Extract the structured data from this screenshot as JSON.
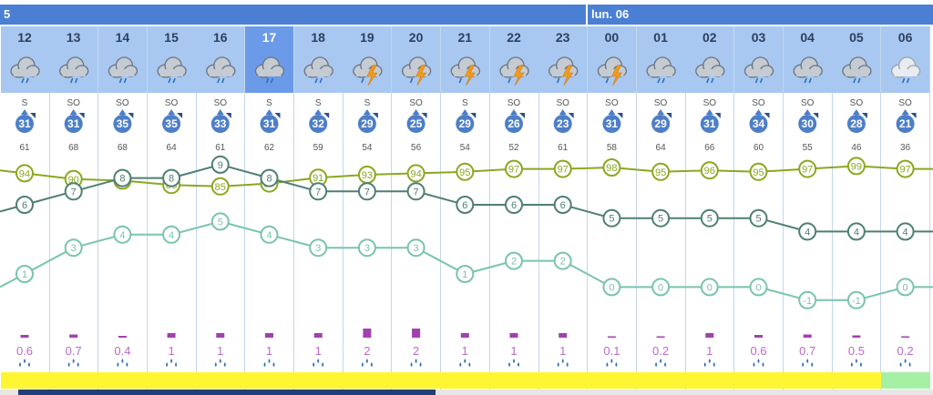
{
  "header": {
    "day_left": "5",
    "day_right": "lun. 06"
  },
  "colors": {
    "day_bar": "#4a7fd4",
    "hour_band": "#a8c8f2",
    "hour_band_current": "#6b9be8",
    "wind_circle": "#4d7fc8",
    "humidity_line": "#8aa820",
    "temp_line": "#4e7f74",
    "dewpoint_line": "#79c4ad",
    "precip_bar": "#a33fb0",
    "precip_text": "#b96bc7",
    "bottom_yellow": "#fff633",
    "bottom_green": "#a5f0a5"
  },
  "columns": [
    {
      "hour": "12",
      "icon": "cloud-rain-icon",
      "wind_dir": "S",
      "wind": "31",
      "gust": "61",
      "humidity": 94,
      "temp": 6,
      "dew": 1,
      "precip": "0.6",
      "band": "yellow"
    },
    {
      "hour": "13",
      "icon": "cloud-rain-icon",
      "wind_dir": "SO",
      "wind": "31",
      "gust": "68",
      "humidity": 90,
      "temp": 7,
      "dew": 3,
      "precip": "0.7",
      "band": "yellow"
    },
    {
      "hour": "14",
      "icon": "cloud-rain-icon",
      "wind_dir": "SO",
      "wind": "35",
      "gust": "68",
      "humidity": 89,
      "temp": 8,
      "dew": 4,
      "precip": "0.4",
      "band": "yellow"
    },
    {
      "hour": "15",
      "icon": "cloud-rain-icon",
      "wind_dir": "SO",
      "wind": "35",
      "gust": "64",
      "humidity": 86,
      "temp": 8,
      "dew": 4,
      "precip": "1",
      "band": "yellow"
    },
    {
      "hour": "16",
      "icon": "cloud-rain-icon",
      "wind_dir": "SO",
      "wind": "33",
      "gust": "61",
      "humidity": 85,
      "temp": 9,
      "dew": 5,
      "precip": "1",
      "band": "yellow"
    },
    {
      "hour": "17",
      "icon": "cloud-rain-icon",
      "wind_dir": "S",
      "wind": "31",
      "gust": "62",
      "humidity": 87,
      "temp": 8,
      "dew": 4,
      "precip": "1",
      "band": "yellow"
    },
    {
      "hour": "18",
      "icon": "cloud-rain-icon",
      "wind_dir": "S",
      "wind": "32",
      "gust": "59",
      "humidity": 91,
      "temp": 7,
      "dew": 3,
      "precip": "1",
      "band": "yellow"
    },
    {
      "hour": "19",
      "icon": "cloud-lightning-icon",
      "wind_dir": "S",
      "wind": "29",
      "gust": "54",
      "humidity": 93,
      "temp": 7,
      "dew": 3,
      "precip": "2",
      "band": "yellow"
    },
    {
      "hour": "20",
      "icon": "cloud-lightning-icon",
      "wind_dir": "SO",
      "wind": "25",
      "gust": "56",
      "humidity": 94,
      "temp": 7,
      "dew": 3,
      "precip": "2",
      "band": "yellow"
    },
    {
      "hour": "21",
      "icon": "cloud-lightning-icon",
      "wind_dir": "S",
      "wind": "29",
      "gust": "54",
      "humidity": 95,
      "temp": 6,
      "dew": 1,
      "precip": "1",
      "band": "yellow"
    },
    {
      "hour": "22",
      "icon": "cloud-lightning-icon",
      "wind_dir": "SO",
      "wind": "26",
      "gust": "52",
      "humidity": 97,
      "temp": 6,
      "dew": 2,
      "precip": "1",
      "band": "yellow"
    },
    {
      "hour": "23",
      "icon": "cloud-lightning-icon",
      "wind_dir": "SO",
      "wind": "23",
      "gust": "61",
      "humidity": 97,
      "temp": 6,
      "dew": 2,
      "precip": "1",
      "band": "yellow"
    },
    {
      "hour": "00",
      "icon": "cloud-lightning-icon",
      "wind_dir": "SO",
      "wind": "31",
      "gust": "58",
      "humidity": 98,
      "temp": 5,
      "dew": 0,
      "precip": "0.1",
      "band": "yellow"
    },
    {
      "hour": "01",
      "icon": "cloud-rain-icon",
      "wind_dir": "SO",
      "wind": "29",
      "gust": "64",
      "humidity": 95,
      "temp": 5,
      "dew": 0,
      "precip": "0.2",
      "band": "yellow"
    },
    {
      "hour": "02",
      "icon": "cloud-rain-icon",
      "wind_dir": "SO",
      "wind": "31",
      "gust": "66",
      "humidity": 96,
      "temp": 5,
      "dew": 0,
      "precip": "1",
      "band": "yellow"
    },
    {
      "hour": "03",
      "icon": "cloud-rain-icon",
      "wind_dir": "SO",
      "wind": "34",
      "gust": "60",
      "humidity": 95,
      "temp": 5,
      "dew": 0,
      "precip": "0.6",
      "band": "yellow"
    },
    {
      "hour": "04",
      "icon": "cloud-rain-icon",
      "wind_dir": "SO",
      "wind": "30",
      "gust": "55",
      "humidity": 97,
      "temp": 4,
      "dew": -1,
      "precip": "0.7",
      "band": "yellow"
    },
    {
      "hour": "05",
      "icon": "cloud-rain-icon",
      "wind_dir": "SO",
      "wind": "28",
      "gust": "46",
      "humidity": 99,
      "temp": 4,
      "dew": -1,
      "precip": "0.5",
      "band": "yellow"
    },
    {
      "hour": "06",
      "icon": "cloud-light-rain-icon",
      "wind_dir": "SO",
      "wind": "21",
      "gust": "36",
      "humidity": 97,
      "temp": 4,
      "dew": 0,
      "precip": "0.2",
      "band": "green"
    }
  ],
  "chart_data": {
    "type": "line",
    "categories": [
      "12",
      "13",
      "14",
      "15",
      "16",
      "17",
      "18",
      "19",
      "20",
      "21",
      "22",
      "23",
      "00",
      "01",
      "02",
      "03",
      "04",
      "05",
      "06"
    ],
    "series": [
      {
        "values": [
          94,
          90,
          89,
          86,
          85,
          87,
          91,
          93,
          94,
          95,
          97,
          97,
          98,
          95,
          96,
          95,
          97,
          99,
          97
        ]
      },
      {
        "values": [
          6,
          7,
          8,
          8,
          9,
          8,
          7,
          7,
          7,
          6,
          6,
          6,
          5,
          5,
          5,
          5,
          4,
          4,
          4
        ]
      },
      {
        "values": [
          1,
          3,
          4,
          4,
          5,
          4,
          3,
          3,
          3,
          1,
          2,
          2,
          0,
          0,
          0,
          0,
          -1,
          -1,
          0
        ]
      }
    ],
    "bars": [
      {
        "values": [
          0.6,
          0.7,
          0.4,
          1,
          1,
          1,
          1,
          2,
          2,
          1,
          1,
          1,
          0.1,
          0.2,
          1,
          0.6,
          0.7,
          0.5,
          0.2
        ]
      }
    ],
    "grid": true,
    "legend": "none"
  }
}
